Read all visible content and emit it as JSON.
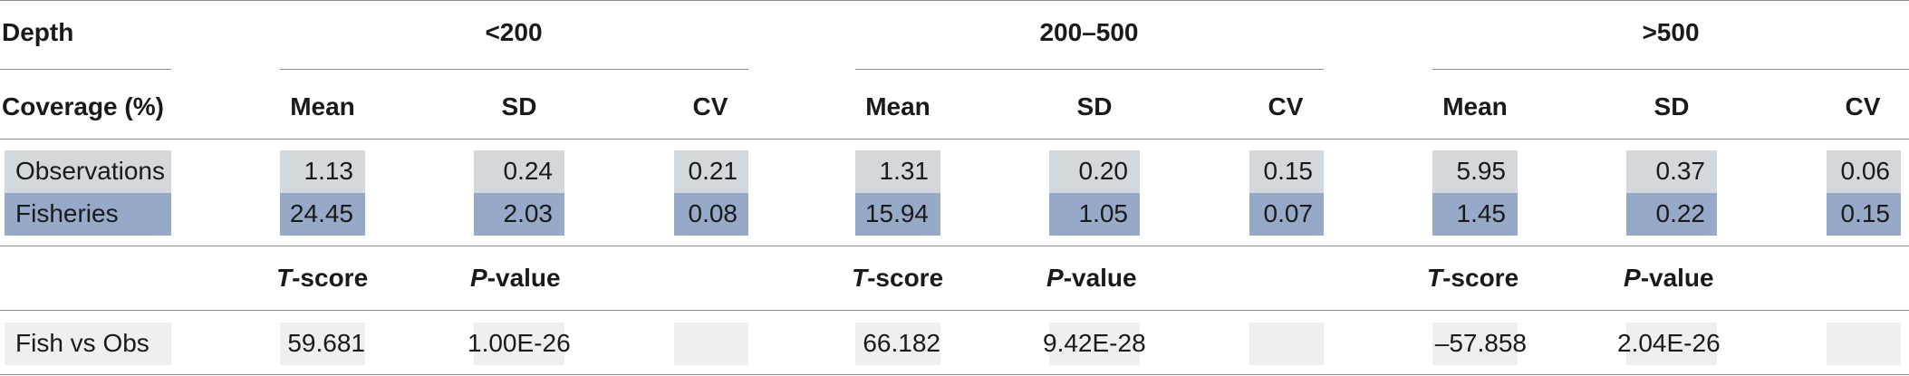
{
  "header": {
    "depth_label": "Depth",
    "coverage_label": "Coverage (%)",
    "groups": [
      "<200",
      "200–500",
      ">500"
    ],
    "stats": [
      "Mean",
      "SD",
      "CV"
    ]
  },
  "rows": {
    "observations": {
      "label": "Observations",
      "values": [
        [
          "1.13",
          "0.24",
          "0.21"
        ],
        [
          "1.31",
          "0.20",
          "0.15"
        ],
        [
          "5.95",
          "0.37",
          "0.06"
        ]
      ]
    },
    "fisheries": {
      "label": "Fisheries",
      "values": [
        [
          "24.45",
          "2.03",
          "0.08"
        ],
        [
          "15.94",
          "1.05",
          "0.07"
        ],
        [
          "1.45",
          "0.22",
          "0.15"
        ]
      ]
    }
  },
  "test_header": {
    "t_italic": "T",
    "t_rest": "-score",
    "p_italic": "P",
    "p_rest": "-value"
  },
  "test_row": {
    "label": "Fish vs Obs",
    "values": [
      [
        "59.681",
        "1.00E-26"
      ],
      [
        "66.182",
        "9.42E-28"
      ],
      [
        "–57.858",
        "2.04E-26"
      ]
    ]
  },
  "colors": {
    "observations_bg": "#d2d8dc",
    "fisheries_bg": "#97a9c8",
    "empty_bg": "#efefef"
  }
}
